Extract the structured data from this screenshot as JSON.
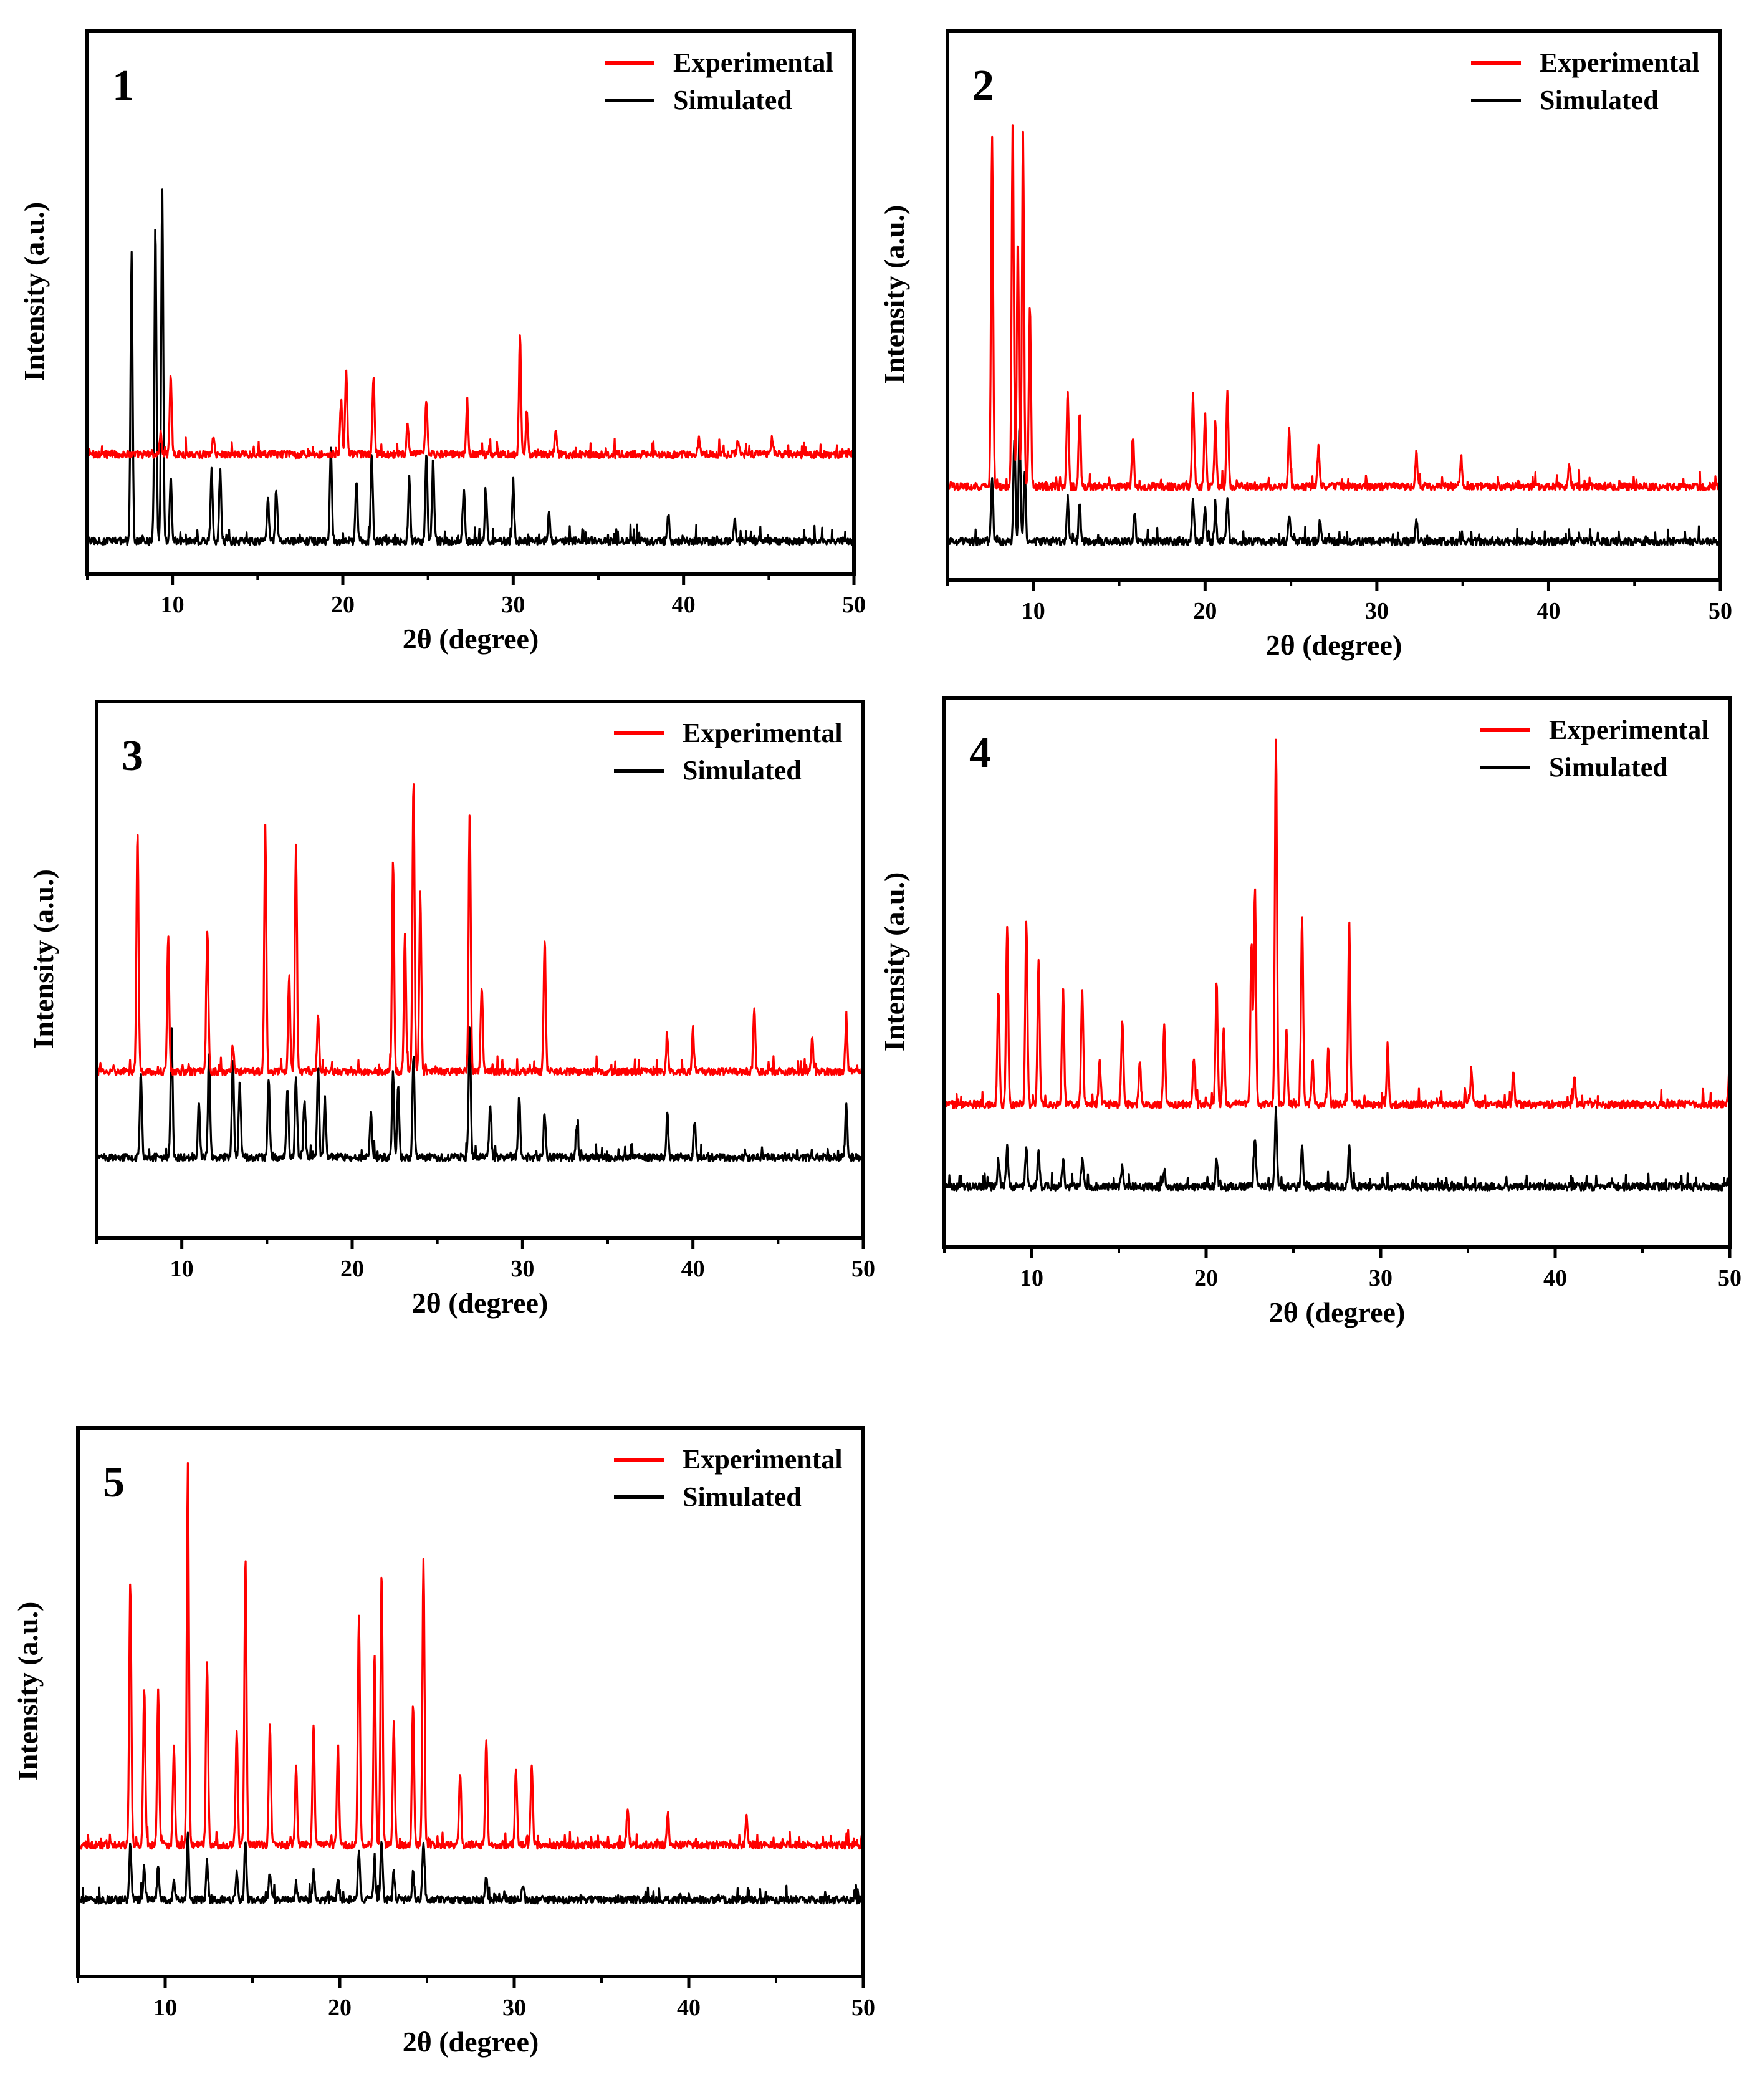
{
  "colors": {
    "experimental": "#ff0000",
    "simulated": "#000000"
  },
  "chart_data": [
    {
      "panel_label": "1",
      "type": "line",
      "xlabel": "2θ (degree)",
      "ylabel": "Intensity (a.u.)",
      "xlim": [
        5,
        50
      ],
      "ylim": [
        0,
        100
      ],
      "xticks": [
        "10",
        "20",
        "30",
        "40",
        "50"
      ],
      "legend": {
        "position": "top-right",
        "entries": [
          "Experimental",
          "Simulated"
        ]
      },
      "series": [
        {
          "name": "Experimental",
          "color": "#ff0000",
          "baseline": 22,
          "peaks": [
            [
              9.3,
              4
            ],
            [
              9.9,
              15
            ],
            [
              12.4,
              3
            ],
            [
              19.9,
              10
            ],
            [
              20.2,
              16
            ],
            [
              21.8,
              14
            ],
            [
              23.8,
              6
            ],
            [
              24.9,
              10
            ],
            [
              27.3,
              9
            ],
            [
              30.4,
              22
            ],
            [
              30.8,
              8
            ],
            [
              32.5,
              4
            ],
            [
              40.9,
              3
            ],
            [
              43.2,
              3
            ],
            [
              45.2,
              3
            ]
          ]
        },
        {
          "name": "Simulated",
          "color": "#000000",
          "baseline": 6,
          "peaks": [
            [
              7.6,
              53
            ],
            [
              9.0,
              57
            ],
            [
              9.4,
              65
            ],
            [
              9.9,
              12
            ],
            [
              12.3,
              13
            ],
            [
              12.8,
              13
            ],
            [
              15.6,
              7
            ],
            [
              16.1,
              9
            ],
            [
              19.3,
              17
            ],
            [
              20.8,
              11
            ],
            [
              21.7,
              16
            ],
            [
              23.9,
              12
            ],
            [
              24.9,
              16
            ],
            [
              25.3,
              15
            ],
            [
              27.1,
              10
            ],
            [
              28.4,
              9
            ],
            [
              30.0,
              10
            ],
            [
              32.1,
              5
            ],
            [
              39.1,
              5
            ],
            [
              43.0,
              4
            ]
          ]
        }
      ]
    },
    {
      "panel_label": "2",
      "type": "line",
      "xlabel": "2θ (degree)",
      "ylabel": "Intensity (a.u.)",
      "xlim": [
        5,
        50
      ],
      "ylim": [
        0,
        100
      ],
      "xticks": [
        "10",
        "20",
        "30",
        "40",
        "50"
      ],
      "legend": {
        "position": "top-right",
        "entries": [
          "Experimental",
          "Simulated"
        ]
      },
      "series": [
        {
          "name": "Experimental",
          "color": "#ff0000",
          "baseline": 17,
          "peaks": [
            [
              7.6,
              64
            ],
            [
              8.8,
              67
            ],
            [
              9.1,
              45
            ],
            [
              9.4,
              65
            ],
            [
              9.8,
              33
            ],
            [
              12.0,
              17
            ],
            [
              12.7,
              14
            ],
            [
              15.8,
              9
            ],
            [
              19.3,
              17
            ],
            [
              20.0,
              13
            ],
            [
              20.6,
              12
            ],
            [
              21.3,
              17
            ],
            [
              24.9,
              10
            ],
            [
              26.6,
              7
            ],
            [
              32.3,
              6
            ],
            [
              34.9,
              5
            ],
            [
              41.2,
              4
            ]
          ]
        },
        {
          "name": "Simulated",
          "color": "#000000",
          "baseline": 7,
          "peaks": [
            [
              7.6,
              12
            ],
            [
              8.9,
              19
            ],
            [
              9.2,
              21
            ],
            [
              9.5,
              13
            ],
            [
              12.0,
              8
            ],
            [
              12.7,
              7
            ],
            [
              15.9,
              5
            ],
            [
              19.3,
              8
            ],
            [
              20.0,
              6
            ],
            [
              20.6,
              6
            ],
            [
              21.3,
              8
            ],
            [
              24.9,
              5
            ],
            [
              26.7,
              4
            ],
            [
              32.3,
              4
            ]
          ]
        }
      ]
    },
    {
      "panel_label": "3",
      "type": "line",
      "xlabel": "2θ (degree)",
      "ylabel": "Intensity (a.u.)",
      "xlim": [
        5,
        50
      ],
      "ylim": [
        0,
        100
      ],
      "xticks": [
        "10",
        "20",
        "30",
        "40",
        "50"
      ],
      "legend": {
        "position": "top-right",
        "entries": [
          "Experimental",
          "Simulated"
        ]
      },
      "series": [
        {
          "name": "Experimental",
          "color": "#ff0000",
          "baseline": 31,
          "peaks": [
            [
              7.4,
              45
            ],
            [
              9.2,
              25
            ],
            [
              11.5,
              26
            ],
            [
              13.0,
              4
            ],
            [
              14.9,
              46
            ],
            [
              16.3,
              18
            ],
            [
              16.7,
              42
            ],
            [
              18.0,
              11
            ],
            [
              22.4,
              40
            ],
            [
              23.1,
              26
            ],
            [
              23.6,
              55
            ],
            [
              24.0,
              33
            ],
            [
              26.9,
              48
            ],
            [
              27.6,
              16
            ],
            [
              31.3,
              25
            ],
            [
              38.5,
              6
            ],
            [
              40.0,
              8
            ],
            [
              43.6,
              12
            ],
            [
              47.0,
              6
            ],
            [
              49.0,
              10
            ]
          ]
        },
        {
          "name": "Simulated",
          "color": "#000000",
          "baseline": 15,
          "peaks": [
            [
              7.6,
              16
            ],
            [
              9.4,
              24
            ],
            [
              11.0,
              10
            ],
            [
              11.6,
              20
            ],
            [
              13.0,
              18
            ],
            [
              13.4,
              14
            ],
            [
              15.1,
              15
            ],
            [
              16.2,
              13
            ],
            [
              16.7,
              15
            ],
            [
              17.2,
              11
            ],
            [
              18.0,
              17
            ],
            [
              18.4,
              11
            ],
            [
              21.1,
              9
            ],
            [
              22.4,
              16
            ],
            [
              22.7,
              13
            ],
            [
              23.6,
              19
            ],
            [
              26.9,
              25
            ],
            [
              28.1,
              10
            ],
            [
              29.8,
              11
            ],
            [
              31.3,
              8
            ],
            [
              33.2,
              6
            ],
            [
              38.5,
              8
            ],
            [
              40.1,
              7
            ],
            [
              49.0,
              10
            ]
          ]
        }
      ]
    },
    {
      "panel_label": "4",
      "type": "line",
      "xlabel": "2θ (degree)",
      "ylabel": "Intensity (a.u.)",
      "xlim": [
        5,
        50
      ],
      "ylim": [
        0,
        100
      ],
      "xticks": [
        "10",
        "20",
        "30",
        "40",
        "50"
      ],
      "legend": {
        "position": "top-right",
        "entries": [
          "Experimental",
          "Simulated"
        ]
      },
      "series": [
        {
          "name": "Experimental",
          "color": "#ff0000",
          "baseline": 26,
          "peaks": [
            [
              8.1,
              21
            ],
            [
              8.6,
              33
            ],
            [
              9.7,
              34
            ],
            [
              10.4,
              26
            ],
            [
              11.8,
              22
            ],
            [
              12.9,
              21
            ],
            [
              13.9,
              8
            ],
            [
              15.2,
              15
            ],
            [
              16.2,
              8
            ],
            [
              17.6,
              14
            ],
            [
              19.3,
              8
            ],
            [
              20.6,
              22
            ],
            [
              21.0,
              14
            ],
            [
              22.6,
              30
            ],
            [
              22.8,
              39
            ],
            [
              24.0,
              67
            ],
            [
              24.6,
              14
            ],
            [
              25.5,
              34
            ],
            [
              26.1,
              8
            ],
            [
              27.0,
              10
            ],
            [
              28.2,
              34
            ],
            [
              30.4,
              10
            ],
            [
              35.2,
              6
            ],
            [
              37.6,
              6
            ],
            [
              41.1,
              5
            ],
            [
              50.0,
              8
            ]
          ]
        },
        {
          "name": "Simulated",
          "color": "#000000",
          "baseline": 11,
          "peaks": [
            [
              8.1,
              5
            ],
            [
              8.6,
              7
            ],
            [
              9.7,
              7
            ],
            [
              10.4,
              6
            ],
            [
              11.8,
              5
            ],
            [
              12.9,
              5
            ],
            [
              15.2,
              4
            ],
            [
              17.6,
              3
            ],
            [
              20.6,
              5
            ],
            [
              22.8,
              9
            ],
            [
              24.0,
              14
            ],
            [
              25.5,
              7
            ],
            [
              28.2,
              7
            ]
          ]
        }
      ]
    },
    {
      "panel_label": "5",
      "type": "line",
      "xlabel": "2θ (degree)",
      "ylabel": "Intensity (a.u.)",
      "xlim": [
        5,
        50
      ],
      "ylim": [
        0,
        100
      ],
      "xticks": [
        "10",
        "20",
        "30",
        "40",
        "50"
      ],
      "legend": {
        "position": "top-right",
        "entries": [
          "Experimental",
          "Simulated"
        ]
      },
      "series": [
        {
          "name": "Experimental",
          "color": "#ff0000",
          "baseline": 24,
          "peaks": [
            [
              8.0,
              48
            ],
            [
              8.8,
              29
            ],
            [
              9.6,
              28
            ],
            [
              10.5,
              18
            ],
            [
              11.3,
              69
            ],
            [
              12.4,
              34
            ],
            [
              14.1,
              21
            ],
            [
              14.6,
              53
            ],
            [
              16.0,
              22
            ],
            [
              17.5,
              14
            ],
            [
              18.5,
              22
            ],
            [
              19.9,
              18
            ],
            [
              21.1,
              42
            ],
            [
              22.0,
              34
            ],
            [
              22.4,
              50
            ],
            [
              23.1,
              22
            ],
            [
              24.2,
              26
            ],
            [
              24.8,
              52
            ],
            [
              26.9,
              13
            ],
            [
              28.4,
              19
            ],
            [
              30.1,
              14
            ],
            [
              31.0,
              15
            ],
            [
              36.5,
              7
            ],
            [
              38.8,
              6
            ],
            [
              43.3,
              5
            ],
            [
              50.0,
              4
            ]
          ]
        },
        {
          "name": "Simulated",
          "color": "#000000",
          "baseline": 14,
          "peaks": [
            [
              8.0,
              10
            ],
            [
              8.8,
              6
            ],
            [
              9.6,
              6
            ],
            [
              10.5,
              4
            ],
            [
              11.3,
              12
            ],
            [
              12.4,
              7
            ],
            [
              14.1,
              5
            ],
            [
              14.6,
              11
            ],
            [
              16.0,
              5
            ],
            [
              17.5,
              3
            ],
            [
              18.5,
              5
            ],
            [
              19.9,
              4
            ],
            [
              21.1,
              9
            ],
            [
              22.0,
              7
            ],
            [
              22.4,
              11
            ],
            [
              23.1,
              5
            ],
            [
              24.2,
              5
            ],
            [
              24.8,
              11
            ],
            [
              28.4,
              4
            ],
            [
              30.5,
              3
            ]
          ]
        }
      ]
    }
  ]
}
